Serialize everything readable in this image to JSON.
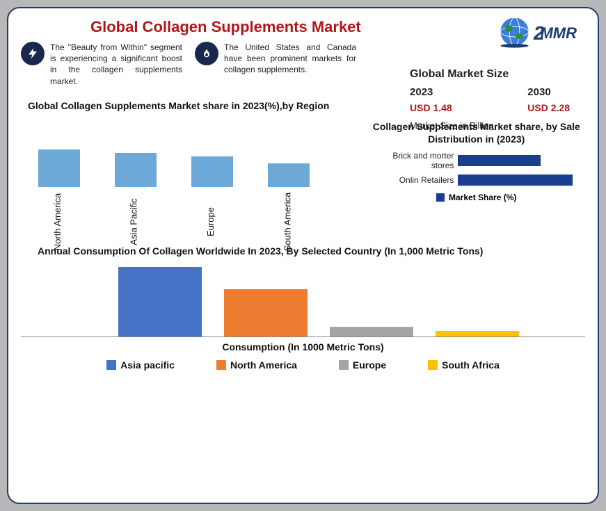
{
  "title": "Global Collagen Supplements Market",
  "logo": {
    "text": "MMR"
  },
  "insights": [
    {
      "icon": "bolt",
      "text": "The \"Beauty from Within\" segment is experiencing a significant boost in the collagen supplements market."
    },
    {
      "icon": "flame",
      "text": "The United States and Canada have been prominent markets for collagen supplements."
    }
  ],
  "market_size": {
    "title": "Global Market Size",
    "years": [
      "2023",
      "2030"
    ],
    "values": [
      "USD 1.48",
      "USD 2.28"
    ],
    "subtitle": "Market Size in Billion"
  },
  "region_chart": {
    "type": "bar",
    "title": "Global Collagen Supplements Market share in 2023(%),by Region",
    "categories": [
      "North America",
      "Asia Pacific",
      "Europe",
      "South America"
    ],
    "values": [
      45,
      41,
      37,
      28
    ],
    "bar_color": "#6ca9d8",
    "ylim": [
      0,
      50
    ],
    "background_color": "#ffffff",
    "label_fontsize": 13
  },
  "dist_chart": {
    "type": "bar",
    "orientation": "horizontal",
    "title": "Collagen Supplements Market share, by Sale Distribution in (2023)",
    "categories": [
      "Brick and morter stores",
      "Onlin Retailers"
    ],
    "values": [
      42,
      58
    ],
    "bar_color": "#1a3d8f",
    "xlim": [
      0,
      60
    ],
    "legend": "Market Share (%)",
    "label_fontsize": 12
  },
  "consume_chart": {
    "type": "bar",
    "title": "Annual Consumption Of Collagen Worldwide In 2023, By Selected Country (In 1,000 Metric Tons)",
    "categories": [
      "Asia pacific",
      "North America",
      "Europe",
      "South Africa"
    ],
    "values": [
      100,
      68,
      14,
      8
    ],
    "bar_colors": [
      "#4472c4",
      "#ed7d31",
      "#a5a5a5",
      "#ffc000"
    ],
    "ylim": [
      0,
      110
    ],
    "xlabel": "Consumption (In 1000 Metric Tons)",
    "label_fontsize": 14,
    "title_fontsize": 14
  },
  "background_color": "#ffffff",
  "border_color": "#1a3d6d"
}
